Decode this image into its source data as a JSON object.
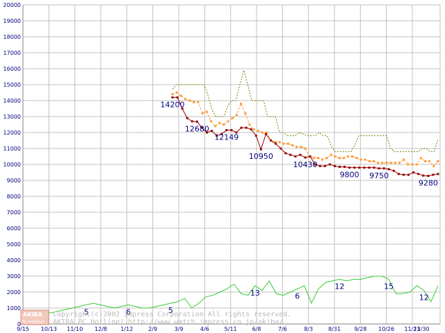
{
  "watermark": {
    "logo_top": "AKIBA",
    "logo_bottom": "PC Hotline!",
    "line1": "Copyright(c)2002 Impress Corporation All rights reserved.",
    "line2": "AKIBA PC Hotline!  http://www.watch.impress.co.jp/akiba/"
  },
  "colors": {
    "max_line": "#7a7a00",
    "avg_line": "#ff9933",
    "min_line": "#990000",
    "count_line": "#33cc33",
    "grid": "#c0c0c0",
    "axis_text": "#000080"
  },
  "chart_data": {
    "type": "line",
    "title": "",
    "xlabel": "",
    "ylabel": "",
    "ylim": [
      0,
      20000
    ],
    "yticks": [
      0,
      1000,
      2000,
      3000,
      4000,
      5000,
      6000,
      7000,
      8000,
      9000,
      10000,
      11000,
      12000,
      13000,
      14000,
      15000,
      16000,
      17000,
      18000,
      19000,
      20000
    ],
    "xticks": [
      "9/15",
      "10/13",
      "11/10",
      "12/8",
      "1/12",
      "2/9",
      "3/9",
      "4/6",
      "5/11",
      "6/8",
      "7/6",
      "8/3",
      "8/31",
      "9/28",
      "10/26",
      "11/23",
      "11/30"
    ],
    "grid": true,
    "series": [
      {
        "style": "dotted",
        "values": [
          14700,
          15000,
          15000,
          15000,
          15000,
          15000,
          15000,
          15000,
          15000,
          14300,
          13400,
          13000,
          13000,
          13000,
          13700,
          14000,
          14000,
          15000,
          15900,
          15000,
          14000,
          14000,
          14000,
          14000,
          13000,
          13000,
          13000,
          12000,
          12000,
          11800,
          11800,
          11800,
          12000,
          11900,
          11800,
          11800,
          11800,
          12000,
          11800,
          11800,
          11200,
          10800,
          10800,
          10800,
          10800,
          10800,
          11200,
          11800,
          11800,
          11800,
          11800,
          11800,
          11800,
          11800,
          11800,
          11000,
          10800,
          10800,
          10800,
          10800,
          10800,
          10800,
          10800,
          11000,
          11000,
          10800,
          10800,
          11600
        ]
      },
      {
        "style": "dashed-markers",
        "values": [
          14400,
          14500,
          14300,
          14100,
          14000,
          13900,
          13900,
          13200,
          13300,
          12700,
          12400,
          12600,
          12500,
          12700,
          12900,
          13100,
          13800,
          13200,
          12500,
          12200,
          12100,
          12000,
          12000,
          11500,
          11400,
          11400,
          11300,
          11300,
          11200,
          11100,
          11100,
          11000,
          10500,
          10400,
          10400,
          10300,
          10400,
          10600,
          10500,
          10400,
          10400,
          10500,
          10500,
          10400,
          10300,
          10300,
          10200,
          10200,
          10100,
          10100,
          10100,
          10100,
          10100,
          10100,
          10300,
          10000,
          10000,
          10000,
          10400,
          10200,
          10200,
          9900,
          10200
        ]
      },
      {
        "style": "solid-markers",
        "values": [
          14200,
          14200,
          13500,
          12900,
          12700,
          12680,
          12300,
          12000,
          12100,
          11800,
          11900,
          12149,
          12149,
          12000,
          12300,
          12300,
          12200,
          11800,
          10950,
          11900,
          11500,
          11300,
          11000,
          10700,
          10600,
          10500,
          10600,
          10430,
          10500,
          10000,
          9900,
          9900,
          10000,
          9900,
          9850,
          9850,
          9800,
          9800,
          9800,
          9800,
          9800,
          9800,
          9750,
          9750,
          9700,
          9600,
          9400,
          9350,
          9350,
          9500,
          9400,
          9300,
          9280,
          9350,
          9400
        ]
      },
      {
        "style": "solid",
        "values": [
          300,
          400,
          600,
          700,
          700,
          800,
          900,
          1000,
          1100,
          1200,
          1300,
          1200,
          1100,
          1000,
          1100,
          1200,
          1100,
          1000,
          1000,
          1100,
          1200,
          1300,
          1400,
          1600,
          1000,
          1300,
          1700,
          1800,
          2000,
          2200,
          2500,
          1900,
          1800,
          2400,
          2100,
          2700,
          1900,
          1800,
          2000,
          2200,
          2400,
          1300,
          2200,
          2600,
          2700,
          2800,
          2700,
          2800,
          2800,
          2900,
          3000,
          3000,
          2800,
          1900,
          1900,
          2000,
          2400,
          2100,
          1400,
          2400
        ]
      }
    ],
    "point_labels": [
      {
        "series": 2,
        "text": "14200"
      },
      {
        "series": 2,
        "text": "12680"
      },
      {
        "series": 2,
        "text": "12149"
      },
      {
        "series": 2,
        "text": "10950"
      },
      {
        "series": 2,
        "text": "10430"
      },
      {
        "series": 2,
        "text": "9800"
      },
      {
        "series": 2,
        "text": "9750"
      },
      {
        "series": 2,
        "text": "9280"
      },
      {
        "series": 3,
        "text": "5"
      },
      {
        "series": 3,
        "text": "6"
      },
      {
        "series": 3,
        "text": "5"
      },
      {
        "series": 3,
        "text": "13"
      },
      {
        "series": 3,
        "text": "6"
      },
      {
        "series": 3,
        "text": "12"
      },
      {
        "series": 3,
        "text": "15"
      },
      {
        "series": 3,
        "text": "12"
      }
    ]
  }
}
